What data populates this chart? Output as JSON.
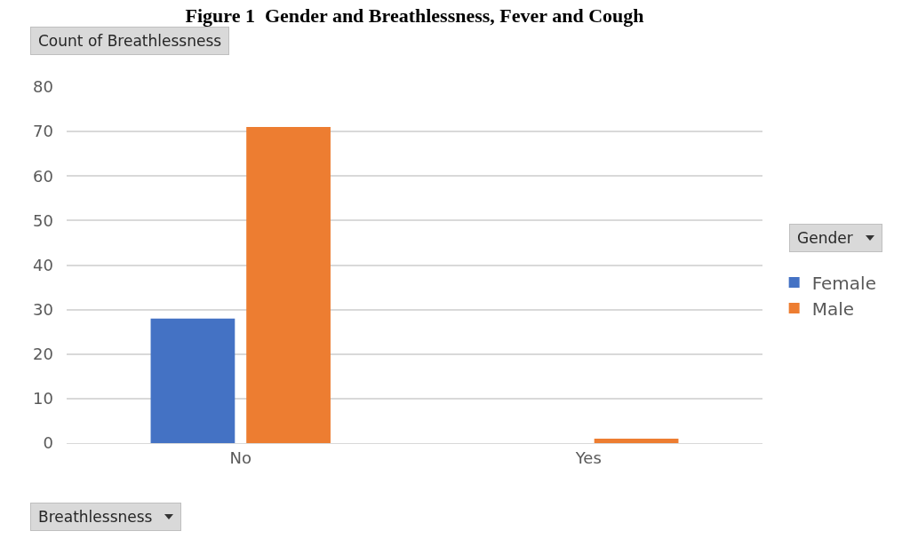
{
  "chart_data": {
    "type": "bar",
    "title": "Figure 1  Gender and Breathlessness, Fever and Cough",
    "ylabel": "Count of Breathlessness",
    "xlabel": "Breathlessness",
    "legend_title": "Gender",
    "categories": [
      "No",
      "Yes"
    ],
    "series": [
      {
        "name": "Female",
        "color": "#4472c4",
        "values": [
          28,
          0
        ]
      },
      {
        "name": "Male",
        "color": "#ed7d31",
        "values": [
          71,
          1
        ]
      }
    ],
    "ylim": [
      0,
      80
    ],
    "yticks": [
      0,
      10,
      20,
      30,
      40,
      50,
      60,
      70,
      80
    ],
    "grid": "y",
    "legend": "right"
  }
}
